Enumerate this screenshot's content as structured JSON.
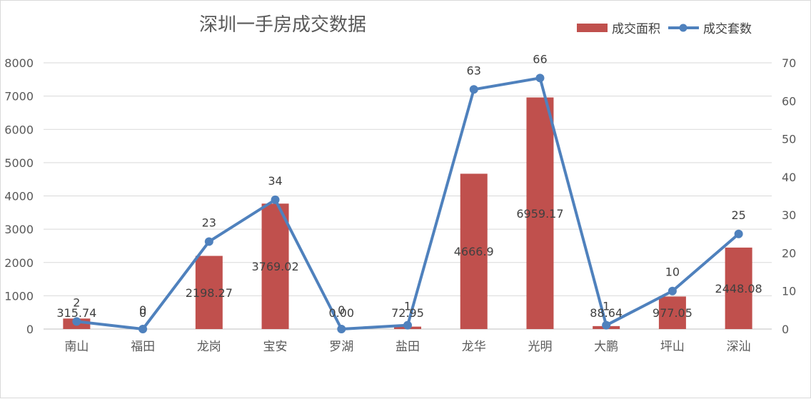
{
  "chart_data": {
    "type": "bar",
    "title": "深圳一手房成交数据",
    "categories": [
      "南山",
      "福田",
      "龙岗",
      "宝安",
      "罗湖",
      "盐田",
      "龙华",
      "光明",
      "大鹏",
      "坪山",
      "深汕"
    ],
    "series": [
      {
        "name": "成交面积",
        "type": "bar",
        "axis": "left",
        "color": "#c0504d",
        "values": [
          315.74,
          0,
          2198.27,
          3769.02,
          0,
          72.95,
          4666.9,
          6959.17,
          88.64,
          977.05,
          2448.08
        ],
        "labels": [
          "315.74",
          "0",
          "2198.27",
          "3769.02",
          "0.00",
          "72.95",
          "4666.9",
          "6959.17",
          "88.64",
          "977.05",
          "2448.08"
        ]
      },
      {
        "name": "成交套数",
        "type": "line",
        "axis": "right",
        "color": "#4f81bd",
        "values": [
          2,
          0,
          23,
          34,
          0,
          1,
          63,
          66,
          1,
          10,
          25
        ],
        "labels": [
          "2",
          "0",
          "23",
          "34",
          "0",
          "1",
          "63",
          "66",
          "1",
          "10",
          "25"
        ]
      }
    ],
    "y_left": {
      "min": 0,
      "max": 8000,
      "ticks": [
        "0",
        "1000",
        "2000",
        "3000",
        "4000",
        "5000",
        "6000",
        "7000",
        "8000"
      ]
    },
    "y_right": {
      "min": 0,
      "max": 70,
      "ticks": [
        "0",
        "10",
        "20",
        "30",
        "40",
        "50",
        "60",
        "70"
      ]
    },
    "grid": true,
    "legend_position": "top-right"
  }
}
